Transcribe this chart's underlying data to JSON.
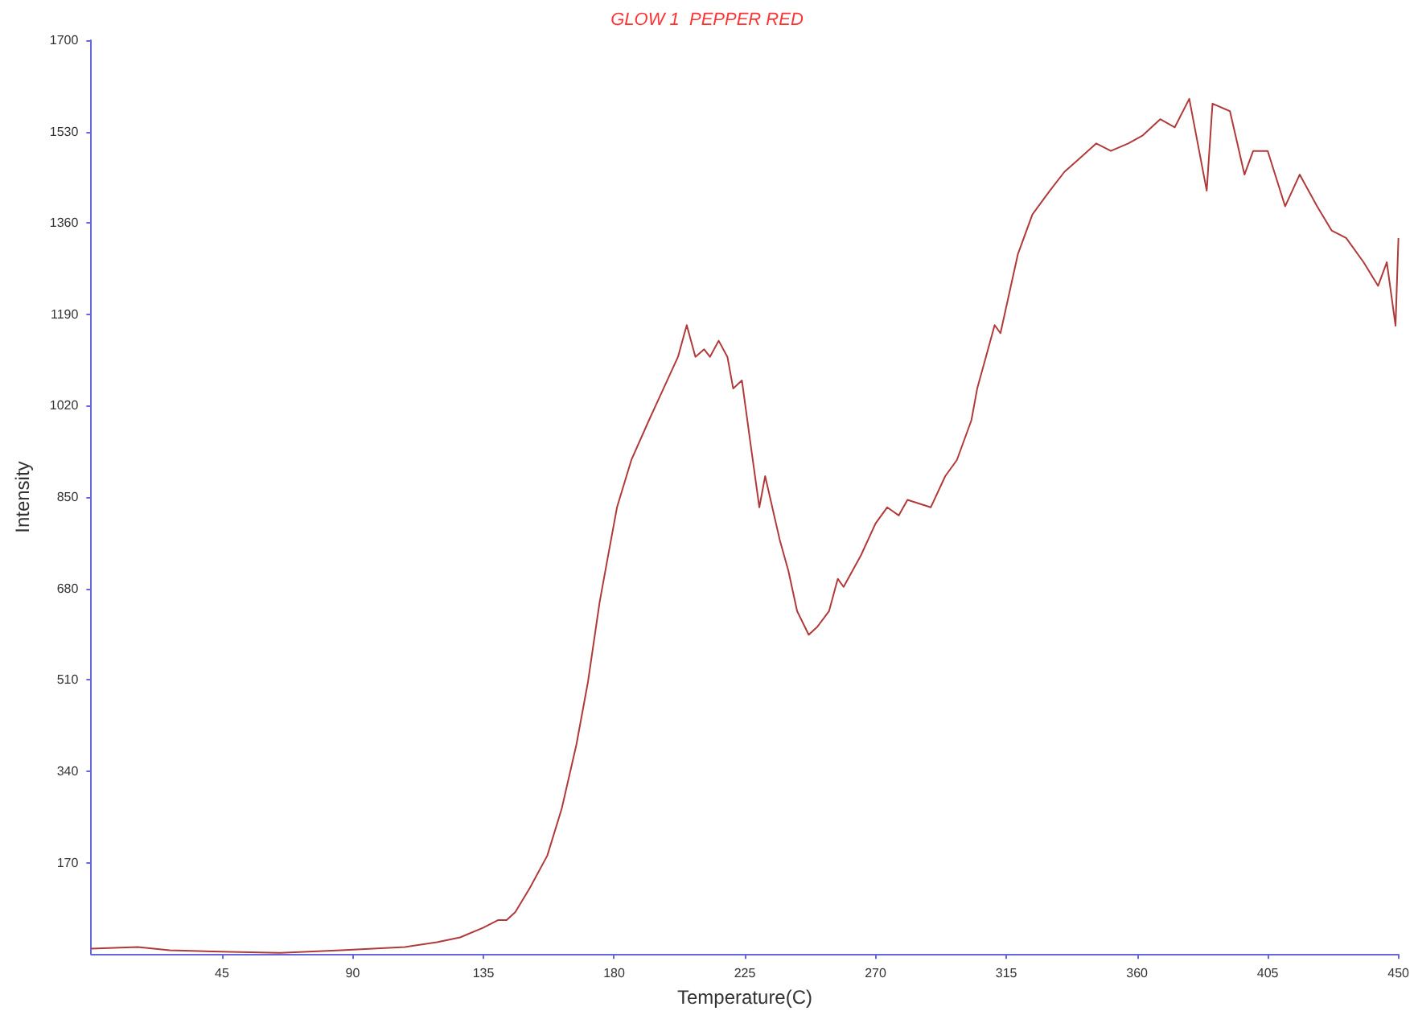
{
  "chart_data": {
    "type": "line",
    "title": "GLOW 1  PEPPER RED",
    "xlabel": "Temperature(C)",
    "ylabel": "Intensity",
    "xlim": [
      0,
      450
    ],
    "ylim": [
      0,
      1700
    ],
    "xticks": [
      45,
      90,
      135,
      180,
      225,
      270,
      315,
      360,
      405,
      450
    ],
    "yticks": [
      170,
      340,
      510,
      680,
      850,
      1020,
      1190,
      1360,
      1530,
      1700
    ],
    "grid": false,
    "marker": "none",
    "line_style": "solid",
    "series": [
      {
        "color": "#b03a3a",
        "x": [
          0,
          16,
          27,
          48,
          65,
          86,
          97,
          108,
          119,
          127,
          135,
          140,
          143,
          146,
          151,
          157,
          162,
          167,
          171,
          175,
          178,
          181,
          186,
          192,
          197,
          202,
          205,
          208,
          211,
          213,
          216,
          219,
          221,
          224,
          227,
          230,
          232,
          237,
          240,
          243,
          247,
          250,
          254,
          257,
          259,
          265,
          270,
          274,
          278,
          281,
          289,
          294,
          298,
          303,
          305,
          308,
          311,
          313,
          319,
          324,
          330,
          335,
          340,
          346,
          351,
          357,
          362,
          368,
          373,
          378,
          384,
          386,
          392,
          397,
          400,
          405,
          411,
          416,
          422,
          427,
          432,
          438,
          443,
          446,
          449,
          450
        ],
        "values": [
          10,
          13,
          7,
          4,
          2,
          7,
          10,
          13,
          22,
          31,
          49,
          63,
          63,
          78,
          123,
          183,
          271,
          389,
          506,
          654,
          743,
          831,
          920,
          993,
          1052,
          1111,
          1170,
          1111,
          1125,
          1111,
          1141,
          1111,
          1052,
          1067,
          948,
          831,
          889,
          771,
          713,
          638,
          594,
          609,
          638,
          698,
          683,
          742,
          801,
          831,
          816,
          845,
          831,
          889,
          919,
          993,
          1052,
          1111,
          1170,
          1155,
          1302,
          1376,
          1420,
          1455,
          1479,
          1508,
          1494,
          1508,
          1523,
          1553,
          1538,
          1591,
          1420,
          1582,
          1568,
          1450,
          1494,
          1494,
          1391,
          1450,
          1391,
          1346,
          1332,
          1287,
          1243,
          1287,
          1169,
          1332
        ]
      }
    ]
  }
}
